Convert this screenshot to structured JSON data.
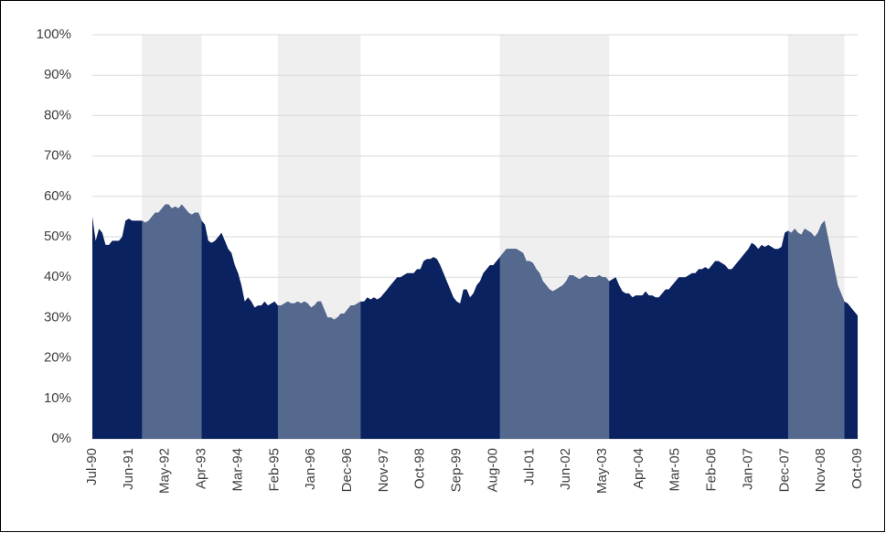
{
  "chart_data": {
    "type": "area",
    "categories": [
      "Jul-90",
      null,
      null,
      null,
      null,
      null,
      null,
      null,
      null,
      null,
      null,
      "Jun-91",
      null,
      null,
      null,
      null,
      null,
      null,
      null,
      null,
      null,
      null,
      "May-92",
      null,
      null,
      null,
      null,
      null,
      null,
      null,
      null,
      null,
      null,
      "Apr-93",
      null,
      null,
      null,
      null,
      null,
      null,
      null,
      null,
      null,
      null,
      "Mar-94",
      null,
      null,
      null,
      null,
      null,
      null,
      null,
      null,
      null,
      null,
      "Feb-95",
      null,
      null,
      null,
      null,
      null,
      null,
      null,
      null,
      null,
      null,
      "Jan-96",
      null,
      null,
      null,
      null,
      null,
      null,
      null,
      null,
      null,
      null,
      "Dec-96",
      null,
      null,
      null,
      null,
      null,
      null,
      null,
      null,
      null,
      null,
      "Nov-97",
      null,
      null,
      null,
      null,
      null,
      null,
      null,
      null,
      null,
      null,
      "Oct-98",
      null,
      null,
      null,
      null,
      null,
      null,
      null,
      null,
      null,
      null,
      "Sep-99",
      null,
      null,
      null,
      null,
      null,
      null,
      null,
      null,
      null,
      null,
      "Aug-00",
      null,
      null,
      null,
      null,
      null,
      null,
      null,
      null,
      null,
      null,
      "Jul-01",
      null,
      null,
      null,
      null,
      null,
      null,
      null,
      null,
      null,
      null,
      "Jun-02",
      null,
      null,
      null,
      null,
      null,
      null,
      null,
      null,
      null,
      null,
      "May-03",
      null,
      null,
      null,
      null,
      null,
      null,
      null,
      null,
      null,
      null,
      "Apr-04",
      null,
      null,
      null,
      null,
      null,
      null,
      null,
      null,
      null,
      null,
      "Mar-05",
      null,
      null,
      null,
      null,
      null,
      null,
      null,
      null,
      null,
      null,
      "Feb-06",
      null,
      null,
      null,
      null,
      null,
      null,
      null,
      null,
      null,
      null,
      "Jan-07",
      null,
      null,
      null,
      null,
      null,
      null,
      null,
      null,
      null,
      null,
      "Dec-07",
      null,
      null,
      null,
      null,
      null,
      null,
      null,
      null,
      null,
      null,
      "Nov-08",
      null,
      null,
      null,
      null,
      null,
      null,
      null,
      null,
      null,
      null,
      "Oct-09"
    ],
    "values": [
      55,
      49,
      52,
      51,
      48,
      48,
      49,
      49,
      49,
      50,
      54,
      54.5,
      54,
      54,
      54,
      54,
      53.5,
      54,
      55,
      56,
      56,
      57,
      58,
      58,
      57,
      57.5,
      57,
      58,
      57,
      56,
      55.5,
      56,
      56,
      54,
      53,
      49,
      48.5,
      49,
      50,
      51,
      49,
      47,
      46,
      43,
      41,
      38,
      34,
      35,
      34,
      32.5,
      33,
      33,
      34,
      33,
      33.5,
      34,
      33,
      33,
      33.5,
      34,
      33.5,
      33.5,
      34,
      33.5,
      34,
      33.5,
      32.5,
      33,
      34,
      34,
      32,
      30,
      30,
      29.5,
      30,
      31,
      31,
      32,
      33,
      33,
      33.5,
      34,
      34,
      35,
      34.5,
      35,
      34.5,
      35,
      36,
      37,
      38,
      39,
      40,
      40,
      40.5,
      41,
      41,
      41,
      42,
      42,
      44,
      44.5,
      44.5,
      45,
      44.5,
      43,
      41,
      39,
      37,
      35,
      34,
      33.5,
      37,
      37,
      35,
      36,
      38,
      39,
      41,
      42,
      43,
      43,
      44,
      45,
      46,
      47,
      47,
      47,
      47,
      46.5,
      46,
      44,
      44,
      43.5,
      42,
      41,
      39,
      38,
      37,
      36.5,
      37,
      37.5,
      38,
      39,
      40.5,
      40.5,
      40,
      39.5,
      40,
      40.5,
      40,
      40,
      40,
      40.5,
      40,
      40,
      39,
      39.5,
      40,
      38,
      36.5,
      36,
      36,
      35,
      35.5,
      35.5,
      35.5,
      36.5,
      35.5,
      35.5,
      35,
      35,
      36,
      37,
      37,
      38,
      39,
      40,
      40,
      40,
      40.5,
      41,
      41,
      42,
      42,
      42.5,
      42,
      43,
      44,
      44,
      43.5,
      43,
      42,
      42,
      43,
      44,
      45,
      46,
      47,
      48.5,
      48,
      47,
      48,
      47.5,
      48,
      47.5,
      47,
      47,
      47.5,
      51,
      51.5,
      51,
      52,
      51,
      50.5,
      52,
      51.5,
      51,
      50,
      51,
      53,
      54,
      50,
      46,
      42,
      38,
      36,
      34,
      33.5,
      32.5,
      31.5,
      30.5
    ],
    "color": "#0b2260",
    "band_area_color": "#55688e",
    "band_color": "#efefef",
    "bands": [
      [
        15,
        33
      ],
      [
        56,
        81
      ],
      [
        123,
        156
      ],
      [
        210,
        227
      ]
    ],
    "ylim": [
      0,
      100
    ],
    "yticks": [
      {
        "value": 0,
        "label": "0%"
      },
      {
        "value": 10,
        "label": "10%"
      },
      {
        "value": 20,
        "label": "20%"
      },
      {
        "value": 30,
        "label": "30%"
      },
      {
        "value": 40,
        "label": "40%"
      },
      {
        "value": 50,
        "label": "50%"
      },
      {
        "value": 60,
        "label": "60%"
      },
      {
        "value": 70,
        "label": "70%"
      },
      {
        "value": 80,
        "label": "80%"
      },
      {
        "value": 90,
        "label": "90%"
      },
      {
        "value": 100,
        "label": "100%"
      }
    ],
    "grid": true
  }
}
